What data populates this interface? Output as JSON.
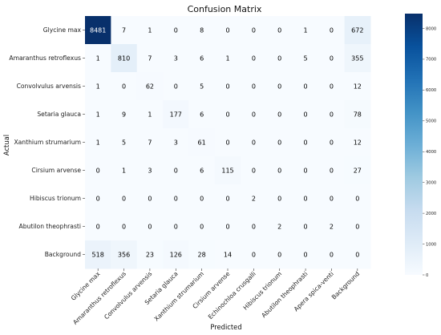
{
  "chart_data": {
    "type": "heatmap",
    "title": "Confusion Matrix",
    "xlabel": "Predicted",
    "ylabel": "Actual",
    "x_categories": [
      "Glycine max",
      "Amaranthus retroflexus",
      "Convolvulus arvensis",
      "Setaria glauca",
      "Xanthium strumarium",
      "Cirsium arvense",
      "Echinochloa crusgalli",
      "Hibiscus trionum",
      "Abutilon theophrasti",
      "Apera spica-venti",
      "Background"
    ],
    "y_categories": [
      "Glycine max",
      "Amaranthus retroflexus",
      "Convolvulus arvensis",
      "Setaria glauca",
      "Xanthium strumarium",
      "Cirsium arvense",
      "Hibiscus trionum",
      "Abutilon theophrasti",
      "Background"
    ],
    "values": [
      [
        8481,
        7,
        1,
        0,
        8,
        0,
        0,
        0,
        1,
        0,
        672
      ],
      [
        1,
        810,
        7,
        3,
        6,
        1,
        0,
        0,
        5,
        0,
        355
      ],
      [
        1,
        0,
        62,
        0,
        5,
        0,
        0,
        0,
        0,
        0,
        12
      ],
      [
        1,
        9,
        1,
        177,
        6,
        0,
        0,
        0,
        0,
        0,
        78
      ],
      [
        1,
        5,
        7,
        3,
        61,
        0,
        0,
        0,
        0,
        0,
        12
      ],
      [
        0,
        1,
        3,
        0,
        6,
        115,
        0,
        0,
        0,
        0,
        27
      ],
      [
        0,
        0,
        0,
        0,
        0,
        0,
        2,
        0,
        0,
        0,
        0
      ],
      [
        0,
        0,
        0,
        0,
        0,
        0,
        0,
        2,
        0,
        2,
        0
      ],
      [
        518,
        356,
        23,
        126,
        28,
        14,
        0,
        0,
        0,
        0,
        0
      ]
    ],
    "colormap": "Blues",
    "color_range": [
      0,
      8481
    ],
    "colorbar_ticks": [
      0,
      1000,
      2000,
      3000,
      4000,
      5000,
      6000,
      7000,
      8000
    ],
    "colors": {
      "low": "#f7fbff",
      "high": "#08306b",
      "text_dark": "#000000",
      "text_light": "#ffffff"
    }
  }
}
